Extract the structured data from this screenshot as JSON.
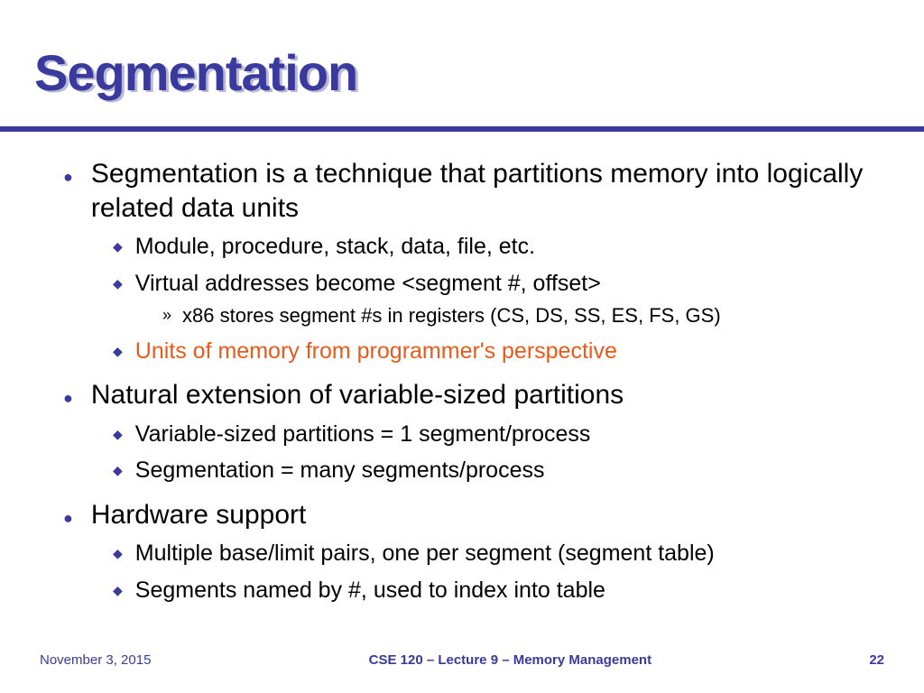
{
  "colors": {
    "accent": "#3a3a9e",
    "title_shadow": "#b8b8d8",
    "highlight": "#e85a1a",
    "background": "#ffffff",
    "text": "#000000"
  },
  "typography": {
    "title_fontsize": 56,
    "title_weight": 900,
    "l1_fontsize": 30,
    "l2_fontsize": 25,
    "l3_fontsize": 22,
    "footer_fontsize": 15,
    "font_family": "Arial"
  },
  "title": "Segmentation",
  "bullets": {
    "g1": {
      "main": "Segmentation is a technique that partitions memory into logically related data units",
      "s1": "Module, procedure, stack, data, file, etc.",
      "s2": "Virtual addresses become <segment #, offset>",
      "s2a": "x86 stores segment #s in registers (CS, DS, SS, ES, FS, GS)",
      "s3": "Units of memory from programmer's perspective"
    },
    "g2": {
      "main": "Natural extension of variable-sized partitions",
      "s1": "Variable-sized partitions = 1 segment/process",
      "s2": "Segmentation = many segments/process"
    },
    "g3": {
      "main": "Hardware support",
      "s1": "Multiple base/limit pairs, one per segment (segment table)",
      "s2": "Segments named by #, used to index into table"
    }
  },
  "footer": {
    "date": "November 3, 2015",
    "center": "CSE 120 – Lecture 9 – Memory Management",
    "page": "22"
  }
}
